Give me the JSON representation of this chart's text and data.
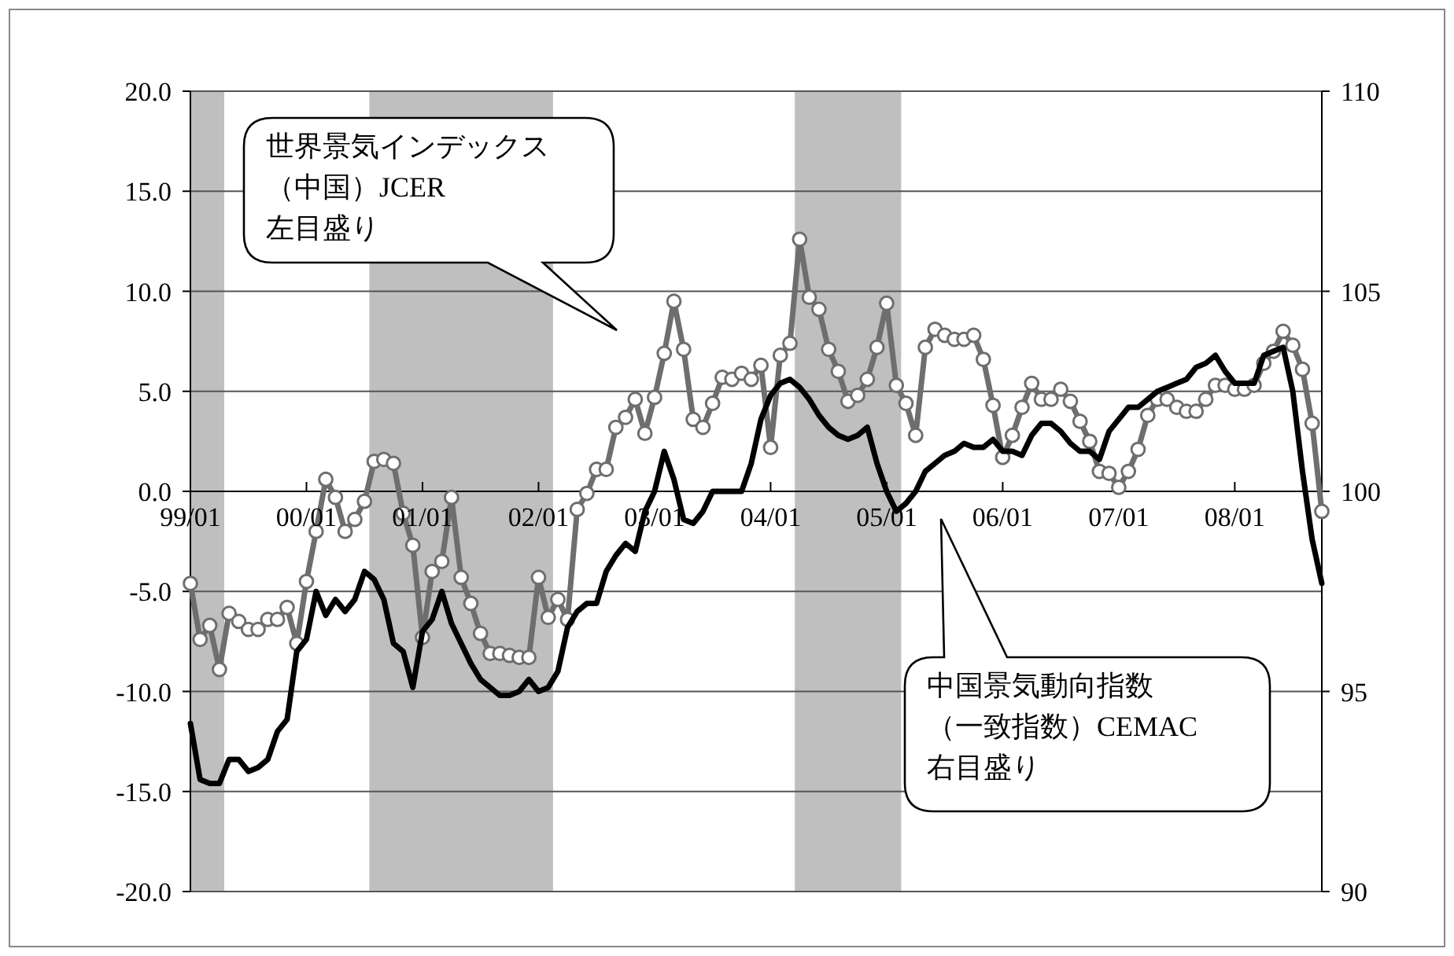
{
  "chart_data": {
    "type": "line",
    "categories": [
      "99/01",
      null,
      null,
      null,
      null,
      null,
      null,
      null,
      null,
      null,
      null,
      null,
      "00/01",
      null,
      null,
      null,
      null,
      null,
      null,
      null,
      null,
      null,
      null,
      null,
      "01/01",
      null,
      null,
      null,
      null,
      null,
      null,
      null,
      null,
      null,
      null,
      null,
      "02/01",
      null,
      null,
      null,
      null,
      null,
      null,
      null,
      null,
      null,
      null,
      null,
      "03/01",
      null,
      null,
      null,
      null,
      null,
      null,
      null,
      null,
      null,
      null,
      null,
      "04/01",
      null,
      null,
      null,
      null,
      null,
      null,
      null,
      null,
      null,
      null,
      null,
      "05/01",
      null,
      null,
      null,
      null,
      null,
      null,
      null,
      null,
      null,
      null,
      null,
      "06/01",
      null,
      null,
      null,
      null,
      null,
      null,
      null,
      null,
      null,
      null,
      null,
      "07/01",
      null,
      null,
      null,
      null,
      null,
      null,
      null,
      null,
      null,
      null,
      null,
      "08/01",
      null,
      null,
      null,
      null,
      null,
      null,
      null,
      null,
      null
    ],
    "ylim": [
      -20,
      20
    ],
    "yticks": [
      {
        "value": -20,
        "label": "-20.0"
      },
      {
        "value": -15,
        "label": "-15.0"
      },
      {
        "value": -10,
        "label": "-10.0"
      },
      {
        "value": -5,
        "label": "-5.0"
      },
      {
        "value": 0,
        "label": "0.0"
      },
      {
        "value": 5,
        "label": "5.0"
      },
      {
        "value": 10,
        "label": "10.0"
      },
      {
        "value": 15,
        "label": "15.0"
      },
      {
        "value": 20,
        "label": "20.0"
      }
    ],
    "y2lim": [
      90,
      110
    ],
    "y2ticks": [
      90,
      95,
      100,
      105,
      110
    ],
    "grid": "y",
    "annotations": [
      "世界景気インデックス（中国）JCER左目盛り",
      "中国景気動向指数（一致指数）CEMAC右目盛り"
    ],
    "series": [
      {
        "color": "#6e6e6e",
        "marker": "circle",
        "values": [
          -4.6,
          -7.4,
          -6.7,
          -8.9,
          -6.1,
          -6.5,
          -6.9,
          -6.9,
          -6.4,
          -6.4,
          -5.8,
          -7.6,
          -4.5,
          -2.0,
          0.6,
          -0.3,
          -2.0,
          -1.4,
          -0.5,
          1.5,
          1.6,
          1.4,
          -1.1,
          -2.7,
          -7.3,
          -4.0,
          -3.5,
          -0.3,
          -4.3,
          -5.6,
          -7.1,
          -8.1,
          -8.1,
          -8.2,
          -8.3,
          -8.3,
          -4.3,
          -6.3,
          -5.4,
          -6.4,
          -0.9,
          -0.1,
          1.1,
          1.1,
          3.2,
          3.7,
          4.6,
          2.9,
          4.7,
          6.9,
          9.5,
          7.1,
          3.6,
          3.2,
          4.4,
          5.7,
          5.6,
          5.9,
          5.6,
          6.3,
          2.2,
          6.8,
          7.4,
          12.6,
          9.7,
          9.1,
          7.1,
          6.0,
          4.5,
          4.8,
          5.6,
          7.2,
          9.4,
          5.3,
          4.4,
          2.8,
          7.2,
          8.1,
          7.8,
          7.6,
          7.6,
          7.8,
          6.6,
          4.3,
          1.7,
          2.8,
          4.2,
          5.4,
          4.6,
          4.6,
          5.1,
          4.5,
          3.5,
          2.5,
          1.0,
          0.9,
          0.2,
          1.0,
          2.1,
          3.8,
          4.6,
          4.6,
          4.2,
          4.0,
          4.0,
          4.6,
          5.3,
          5.3,
          5.1,
          5.1,
          5.3,
          6.4,
          7.0,
          8.0,
          7.3,
          6.1,
          3.4,
          -1.0
        ]
      },
      {
        "color": "#000000",
        "marker": "none",
        "axis": "y2",
        "values": [
          94.2,
          92.8,
          92.7,
          92.7,
          93.3,
          93.3,
          93.0,
          93.1,
          93.3,
          94.0,
          94.3,
          96.0,
          96.3,
          97.5,
          96.9,
          97.3,
          97.0,
          97.3,
          98.0,
          97.8,
          97.3,
          96.2,
          96.0,
          95.1,
          96.5,
          96.8,
          97.5,
          96.7,
          96.2,
          95.7,
          95.3,
          95.1,
          94.9,
          94.9,
          95.0,
          95.3,
          95.0,
          95.1,
          95.5,
          96.6,
          97.0,
          97.2,
          97.2,
          98.0,
          98.4,
          98.7,
          98.5,
          99.5,
          100.0,
          101.0,
          100.3,
          99.3,
          99.2,
          99.5,
          100.0,
          100.0,
          100.0,
          100.0,
          100.7,
          101.8,
          102.4,
          102.7,
          102.8,
          102.6,
          102.3,
          101.9,
          101.6,
          101.4,
          101.3,
          101.4,
          101.6,
          100.7,
          100.0,
          99.5,
          99.7,
          100.0,
          100.5,
          100.7,
          100.9,
          101.0,
          101.2,
          101.1,
          101.1,
          101.3,
          101.0,
          101.0,
          100.9,
          101.4,
          101.7,
          101.7,
          101.5,
          101.2,
          101.0,
          101.0,
          100.8,
          101.5,
          101.8,
          102.1,
          102.1,
          102.3,
          102.5,
          102.6,
          102.7,
          102.8,
          103.1,
          103.2,
          103.4,
          103.0,
          102.7,
          102.7,
          102.7,
          103.4,
          103.5,
          103.6,
          102.5,
          100.5,
          98.8,
          97.7
        ]
      }
    ]
  }
}
